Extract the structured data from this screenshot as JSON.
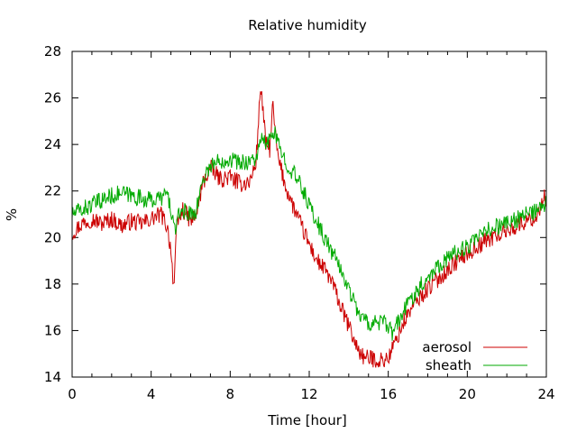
{
  "chart_data": {
    "type": "line",
    "title": "Relative humidity",
    "xlabel": "Time [hour]",
    "ylabel": "%",
    "xlim": [
      0,
      24
    ],
    "ylim": [
      14,
      28
    ],
    "xticks": [
      0,
      4,
      8,
      12,
      16,
      20,
      24
    ],
    "yticks": [
      14,
      16,
      18,
      20,
      22,
      24,
      26,
      28
    ],
    "grid": false,
    "legend_position": "bottom-right",
    "series": [
      {
        "name": "aerosol",
        "color": "#cc0000",
        "points": [
          [
            0,
            20.2
          ],
          [
            0.5,
            20.6
          ],
          [
            1,
            20.8
          ],
          [
            1.5,
            20.6
          ],
          [
            2,
            20.8
          ],
          [
            2.5,
            20.5
          ],
          [
            3,
            20.7
          ],
          [
            3.5,
            20.6
          ],
          [
            4,
            20.8
          ],
          [
            4.5,
            21.0
          ],
          [
            4.8,
            20.5
          ],
          [
            5.0,
            19.5
          ],
          [
            5.15,
            17.8
          ],
          [
            5.3,
            20.5
          ],
          [
            5.6,
            21.2
          ],
          [
            6.0,
            20.7
          ],
          [
            6.3,
            21.0
          ],
          [
            6.6,
            22.3
          ],
          [
            7.0,
            23.0
          ],
          [
            7.5,
            22.5
          ],
          [
            8.0,
            22.6
          ],
          [
            8.5,
            22.3
          ],
          [
            9.0,
            22.4
          ],
          [
            9.3,
            23.2
          ],
          [
            9.55,
            26.6
          ],
          [
            9.8,
            24.0
          ],
          [
            10.0,
            23.8
          ],
          [
            10.15,
            25.7
          ],
          [
            10.4,
            23.5
          ],
          [
            10.8,
            22.2
          ],
          [
            11.2,
            21.3
          ],
          [
            11.6,
            20.5
          ],
          [
            12.0,
            19.7
          ],
          [
            12.4,
            19.0
          ],
          [
            12.8,
            18.6
          ],
          [
            13.2,
            18.0
          ],
          [
            13.6,
            17.0
          ],
          [
            14.0,
            16.2
          ],
          [
            14.4,
            15.3
          ],
          [
            14.8,
            14.8
          ],
          [
            15.2,
            14.8
          ],
          [
            15.6,
            14.7
          ],
          [
            16.0,
            14.8
          ],
          [
            16.4,
            15.6
          ],
          [
            16.8,
            16.4
          ],
          [
            17.2,
            17.0
          ],
          [
            17.6,
            17.4
          ],
          [
            18.0,
            17.8
          ],
          [
            18.5,
            18.2
          ],
          [
            19.0,
            18.6
          ],
          [
            19.5,
            19.0
          ],
          [
            20.0,
            19.3
          ],
          [
            20.5,
            19.6
          ],
          [
            21.0,
            19.9
          ],
          [
            21.5,
            20.1
          ],
          [
            22.0,
            20.3
          ],
          [
            22.5,
            20.5
          ],
          [
            23.0,
            20.7
          ],
          [
            23.5,
            20.9
          ],
          [
            23.9,
            21.8
          ],
          [
            24.0,
            21.2
          ]
        ]
      },
      {
        "name": "sheath",
        "color": "#00aa00",
        "points": [
          [
            0,
            21.0
          ],
          [
            0.5,
            21.2
          ],
          [
            1,
            21.4
          ],
          [
            1.5,
            21.6
          ],
          [
            2,
            21.8
          ],
          [
            2.5,
            21.9
          ],
          [
            3,
            21.8
          ],
          [
            3.5,
            21.7
          ],
          [
            4,
            21.6
          ],
          [
            4.5,
            21.7
          ],
          [
            4.8,
            21.9
          ],
          [
            5.0,
            21.2
          ],
          [
            5.2,
            20.3
          ],
          [
            5.5,
            21.2
          ],
          [
            6.0,
            21.0
          ],
          [
            6.3,
            21.2
          ],
          [
            6.6,
            22.5
          ],
          [
            7.0,
            23.1
          ],
          [
            7.5,
            23.3
          ],
          [
            8.0,
            23.4
          ],
          [
            8.5,
            23.2
          ],
          [
            9.0,
            23.3
          ],
          [
            9.3,
            23.4
          ],
          [
            9.6,
            24.2
          ],
          [
            9.9,
            24.0
          ],
          [
            10.2,
            24.6
          ],
          [
            10.5,
            23.8
          ],
          [
            11.0,
            23.0
          ],
          [
            11.4,
            22.5
          ],
          [
            11.8,
            21.8
          ],
          [
            12.2,
            21.0
          ],
          [
            12.6,
            20.3
          ],
          [
            13.0,
            19.6
          ],
          [
            13.4,
            19.0
          ],
          [
            13.8,
            18.2
          ],
          [
            14.2,
            17.4
          ],
          [
            14.6,
            16.6
          ],
          [
            15.0,
            16.3
          ],
          [
            15.4,
            16.4
          ],
          [
            15.8,
            16.3
          ],
          [
            16.2,
            15.9
          ],
          [
            16.6,
            16.5
          ],
          [
            17.0,
            17.2
          ],
          [
            17.5,
            17.8
          ],
          [
            18.0,
            18.3
          ],
          [
            18.5,
            18.8
          ],
          [
            19.0,
            19.1
          ],
          [
            19.5,
            19.4
          ],
          [
            20.0,
            19.6
          ],
          [
            20.5,
            19.9
          ],
          [
            21.0,
            20.3
          ],
          [
            21.5,
            20.5
          ],
          [
            22.0,
            20.6
          ],
          [
            22.5,
            20.8
          ],
          [
            23.0,
            21.0
          ],
          [
            23.5,
            21.1
          ],
          [
            24.0,
            21.4
          ]
        ]
      }
    ]
  }
}
